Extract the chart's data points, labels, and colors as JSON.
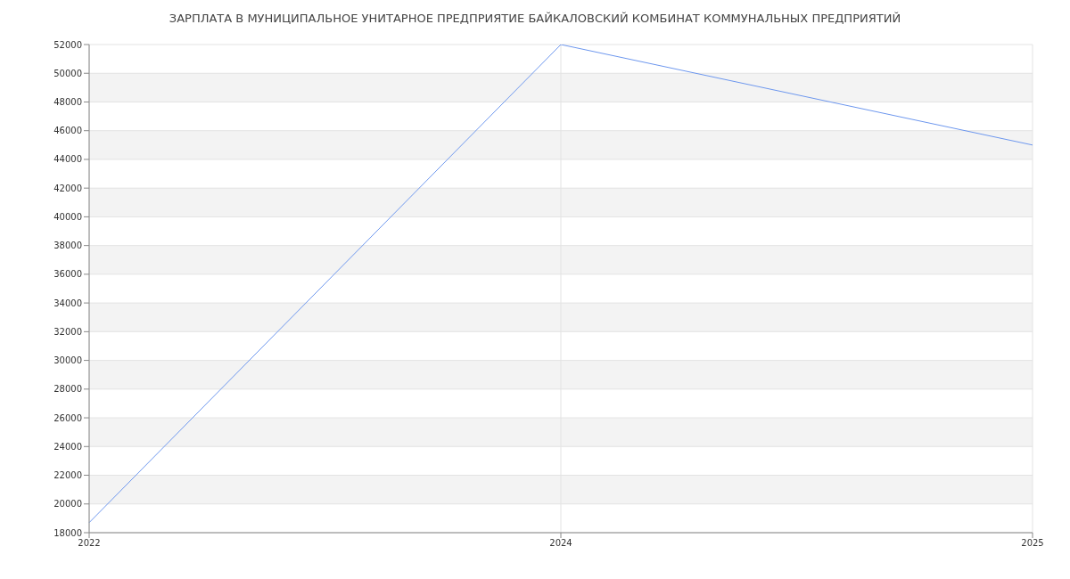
{
  "chart_data": {
    "type": "line",
    "title": "ЗАРПЛАТА В МУНИЦИПАЛЬНОЕ УНИТАРНОЕ ПРЕДПРИЯТИЕ БАЙКАЛОВСКИЙ КОМБИНАТ КОММУНАЛЬНЫХ ПРЕДПРИЯТИЙ",
    "categories": [
      "2022",
      "2024",
      "2025"
    ],
    "series": [
      {
        "color": "#6d97ee",
        "values": [
          18700,
          52000,
          45000
        ]
      }
    ],
    "ylim": [
      18000,
      52000
    ],
    "yticks": [
      18000,
      20000,
      22000,
      24000,
      26000,
      28000,
      30000,
      32000,
      34000,
      36000,
      38000,
      40000,
      42000,
      44000,
      46000,
      48000,
      50000,
      52000
    ],
    "grid": true,
    "marker": "none",
    "line_style": "solid"
  }
}
